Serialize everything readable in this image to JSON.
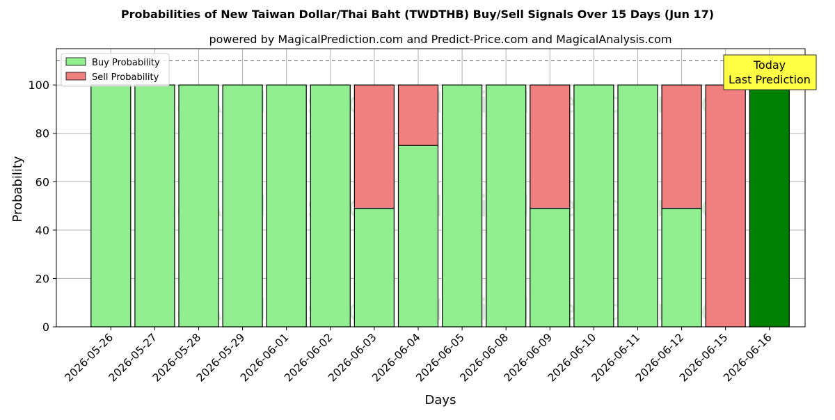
{
  "title": "Probabilities of New Taiwan Dollar/Thai Baht (TWDTHB) Buy/Sell Signals Over 15 Days (Jun 17)",
  "subtitle": "powered by MagicalPrediction.com and Predict-Price.com and MagicalAnalysis.com",
  "watermarks": [
    "MagicalAnalysis.com",
    "MagicalPrediction.com"
  ],
  "annotation": {
    "line1": "Today",
    "line2": "Last Prediction"
  },
  "colors": {
    "buy": "#90ee90",
    "sell": "#f08080",
    "today": "#008000",
    "annotation_bg": "#ffff44",
    "grid": "#b0b0b0"
  },
  "chart_data": {
    "type": "bar",
    "stacked": true,
    "title": "Probabilities of New Taiwan Dollar/Thai Baht (TWDTHB) Buy/Sell Signals Over 15 Days (Jun 17)",
    "subtitle": "powered by MagicalPrediction.com and Predict-Price.com and MagicalAnalysis.com",
    "xlabel": "Days",
    "ylabel": "Probability",
    "ylim": [
      0,
      115
    ],
    "yticks": [
      0,
      20,
      40,
      60,
      80,
      100
    ],
    "grid": true,
    "legend_position": "top-left",
    "reference_line": 110,
    "categories": [
      "2026-05-26",
      "2026-05-27",
      "2026-05-28",
      "2026-05-29",
      "2026-06-01",
      "2026-06-02",
      "2026-06-03",
      "2026-06-04",
      "2026-06-05",
      "2026-06-08",
      "2026-06-09",
      "2026-06-10",
      "2026-06-11",
      "2026-06-12",
      "2026-06-15",
      "2026-06-16"
    ],
    "series": [
      {
        "name": "Buy Probability",
        "values": [
          100,
          100,
          100,
          100,
          100,
          100,
          49,
          75,
          100,
          100,
          49,
          100,
          100,
          49,
          0,
          100
        ]
      },
      {
        "name": "Sell Probability",
        "values": [
          0,
          0,
          0,
          0,
          0,
          0,
          51,
          25,
          0,
          0,
          51,
          0,
          0,
          51,
          100,
          0
        ]
      }
    ],
    "highlight_category": "2026-06-16"
  }
}
